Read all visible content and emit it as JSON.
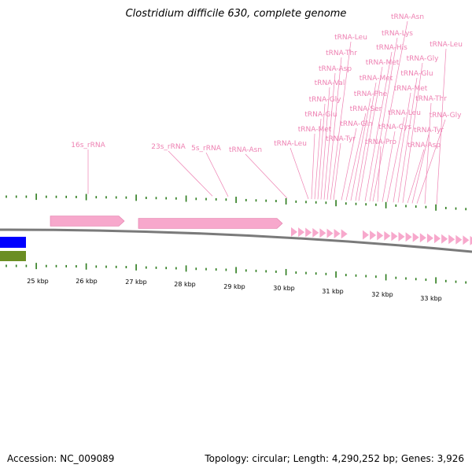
{
  "title": "Clostridium difficile 630, complete genome",
  "footer": {
    "accession": "Accession: NC_009089",
    "topology": "Topology: circular; Length: 4,290,252 bp; Genes: 3,926"
  },
  "colors": {
    "feature": "#f7a8cc",
    "label": "#ee82b3",
    "tick": "#2a7a1a",
    "backbone": "#7a7a7a",
    "legend_blue": "#0000ff",
    "legend_olive": "#6b8e23"
  },
  "scale_labels": [
    "25 kbp",
    "26 kbp",
    "27 kbp",
    "28 kbp",
    "29 kbp",
    "30 kbp",
    "31 kbp",
    "32 kbp",
    "33 kbp"
  ],
  "gene_labels": [
    "16s_rRNA",
    "23s_rRNA",
    "5s_rRNA",
    "tRNA-Asn",
    "tRNA-Leu",
    "tRNA-Met",
    "tRNA-Glu",
    "tRNA-Gly",
    "tRNA-Val",
    "tRNA-Asp",
    "tRNA-Thr",
    "tRNA-Leu",
    "tRNA-Tyr",
    "tRNA-Gln",
    "tRNA-Ser",
    "tRNA-Phe",
    "tRNA-Met",
    "tRNA-Met",
    "tRNA-His",
    "tRNA-Lys",
    "tRNA-Asn",
    "tRNA-Pro",
    "tRNA-Cys",
    "tRNA-Leu",
    "tRNA-Met",
    "tRNA-Glu",
    "tRNA-Gly",
    "tRNA-Asp",
    "tRNA-Tyr",
    "tRNA-Gly",
    "tRNA-Thr",
    "tRNA-Leu"
  ]
}
